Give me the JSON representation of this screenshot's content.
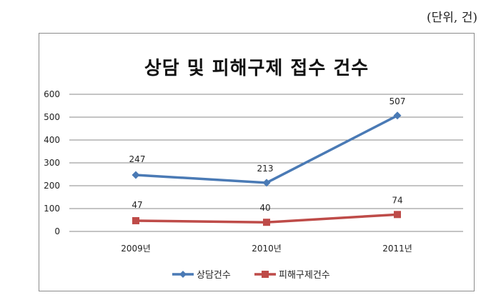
{
  "unit_note": "(단위, 건)",
  "chart_data": {
    "type": "line",
    "title": "상담 및 피해구제 접수 건수",
    "categories": [
      "2009년",
      "2010년",
      "2011년"
    ],
    "series": [
      {
        "name": "상담건수",
        "values": [
          247,
          213,
          507
        ],
        "color": "#4a7ab5",
        "marker": "diamond"
      },
      {
        "name": "피해구제건수",
        "values": [
          47,
          40,
          74
        ],
        "color": "#be4b48",
        "marker": "square"
      }
    ],
    "ylim": [
      0,
      600
    ],
    "yticks": [
      0,
      100,
      200,
      300,
      400,
      500,
      600
    ],
    "grid": true,
    "legend_position": "bottom"
  }
}
